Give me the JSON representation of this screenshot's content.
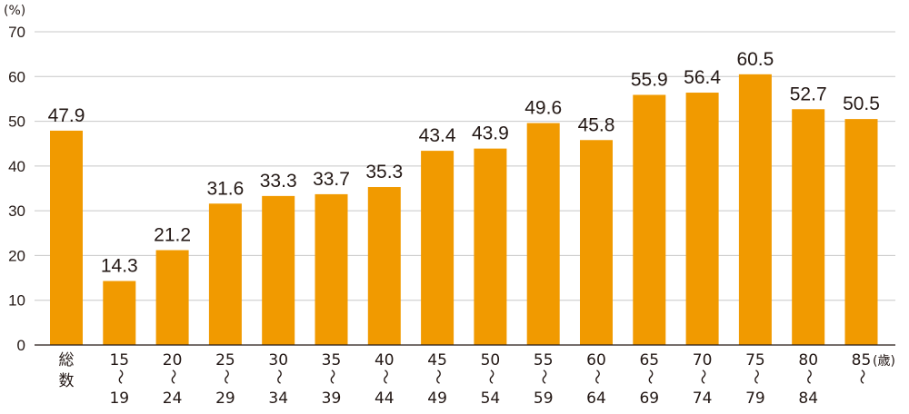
{
  "chart_data": {
    "type": "bar",
    "categories": [
      [
        "総",
        "数"
      ],
      [
        "15",
        "〜",
        "19"
      ],
      [
        "20",
        "〜",
        "24"
      ],
      [
        "25",
        "〜",
        "29"
      ],
      [
        "30",
        "〜",
        "34"
      ],
      [
        "35",
        "〜",
        "39"
      ],
      [
        "40",
        "〜",
        "44"
      ],
      [
        "45",
        "〜",
        "49"
      ],
      [
        "50",
        "〜",
        "54"
      ],
      [
        "55",
        "〜",
        "59"
      ],
      [
        "60",
        "〜",
        "64"
      ],
      [
        "65",
        "〜",
        "69"
      ],
      [
        "70",
        "〜",
        "74"
      ],
      [
        "75",
        "〜",
        "79"
      ],
      [
        "80",
        "〜",
        "84"
      ],
      [
        "85",
        "〜"
      ]
    ],
    "values": [
      47.9,
      14.3,
      21.2,
      31.6,
      33.3,
      33.7,
      35.3,
      43.4,
      43.9,
      49.6,
      45.8,
      55.9,
      56.4,
      60.5,
      52.7,
      50.5
    ],
    "value_labels": [
      "47.9",
      "14.3",
      "21.2",
      "31.6",
      "33.3",
      "33.7",
      "35.3",
      "43.4",
      "43.9",
      "49.6",
      "45.8",
      "55.9",
      "56.4",
      "60.5",
      "52.7",
      "50.5"
    ],
    "y_ticks": [
      0,
      10,
      20,
      30,
      40,
      50,
      60,
      70
    ],
    "ylim": [
      0,
      70
    ],
    "y_unit": "(%)",
    "x_unit": "(歳)",
    "grid": true,
    "bar_color": "#f19a00",
    "axis_color": "#231815",
    "grid_color": "#c8c8c8"
  }
}
